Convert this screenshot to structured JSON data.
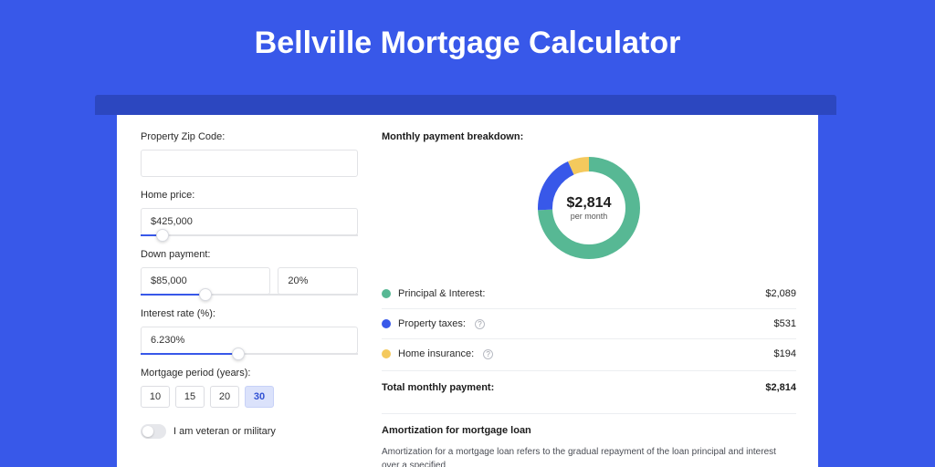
{
  "colors": {
    "page_bg": "#3858e9",
    "shadow": "#2c47c0",
    "card_bg": "#ffffff",
    "border": "#e2e3e6",
    "slider_fill": "#3858e9",
    "slider_track": "#e2e3e6",
    "text": "#2a2a2a",
    "text_strong": "#1c1c1c",
    "divider": "#eceef1"
  },
  "title": "Bellville Mortgage Calculator",
  "form": {
    "zip": {
      "label": "Property Zip Code:",
      "value": ""
    },
    "home_price": {
      "label": "Home price:",
      "value": "$425,000",
      "slider_pct": 10
    },
    "down_payment": {
      "label": "Down payment:",
      "value": "$85,000",
      "pct_value": "20%",
      "slider_pct": 30
    },
    "interest_rate": {
      "label": "Interest rate (%):",
      "value": "6.230%",
      "slider_pct": 45
    },
    "period": {
      "label": "Mortgage period (years):",
      "options": [
        "10",
        "15",
        "20",
        "30"
      ],
      "selected": "30"
    },
    "veteran": {
      "label": "I am veteran or military",
      "on": false
    }
  },
  "breakdown": {
    "title": "Monthly payment breakdown:",
    "center_value": "$2,814",
    "center_sub": "per month",
    "donut": {
      "segments": [
        {
          "key": "principal_interest",
          "color": "#57b894",
          "pct": 74.2
        },
        {
          "key": "property_taxes",
          "color": "#3858e9",
          "pct": 18.9
        },
        {
          "key": "home_insurance",
          "color": "#f4c95d",
          "pct": 6.9
        }
      ],
      "stroke_width": 16,
      "diameter": 120
    },
    "rows": [
      {
        "label": "Principal & Interest:",
        "color": "#57b894",
        "info": false,
        "value": "$2,089"
      },
      {
        "label": "Property taxes:",
        "color": "#3858e9",
        "info": true,
        "value": "$531"
      },
      {
        "label": "Home insurance:",
        "color": "#f4c95d",
        "info": true,
        "value": "$194"
      }
    ],
    "total": {
      "label": "Total monthly payment:",
      "value": "$2,814"
    }
  },
  "amortization": {
    "title": "Amortization for mortgage loan",
    "body": "Amortization for a mortgage loan refers to the gradual repayment of the loan principal and interest over a specified"
  }
}
